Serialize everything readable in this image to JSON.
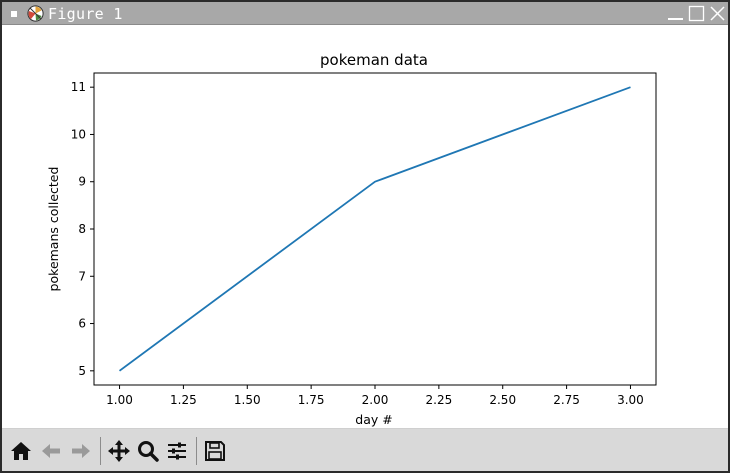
{
  "window": {
    "title": "Figure 1",
    "icons": {
      "menu": "window-menu-icon",
      "app": "matplotlib-app-icon",
      "minimize": "minimize-icon",
      "maximize": "maximize-icon",
      "close": "close-icon"
    }
  },
  "toolbar": {
    "items": [
      {
        "name": "home-icon"
      },
      {
        "name": "back-arrow-icon"
      },
      {
        "name": "forward-arrow-icon"
      },
      {
        "name": "pan-icon"
      },
      {
        "name": "zoom-icon"
      },
      {
        "name": "subplots-icon"
      },
      {
        "name": "save-icon"
      }
    ]
  },
  "chart_data": {
    "type": "line",
    "title": "pokeman data",
    "xlabel": "day #",
    "ylabel": "pokemans collected",
    "x": [
      1.0,
      2.0,
      3.0
    ],
    "y": [
      5,
      9,
      11
    ],
    "xlim": [
      0.9,
      3.1
    ],
    "ylim": [
      4.7,
      11.3
    ],
    "xticks": [
      "1.00",
      "1.25",
      "1.50",
      "1.75",
      "2.00",
      "2.25",
      "2.50",
      "2.75",
      "3.00"
    ],
    "yticks": [
      "5",
      "6",
      "7",
      "8",
      "9",
      "10",
      "11"
    ],
    "line_color": "#1f77b4",
    "grid": false
  }
}
